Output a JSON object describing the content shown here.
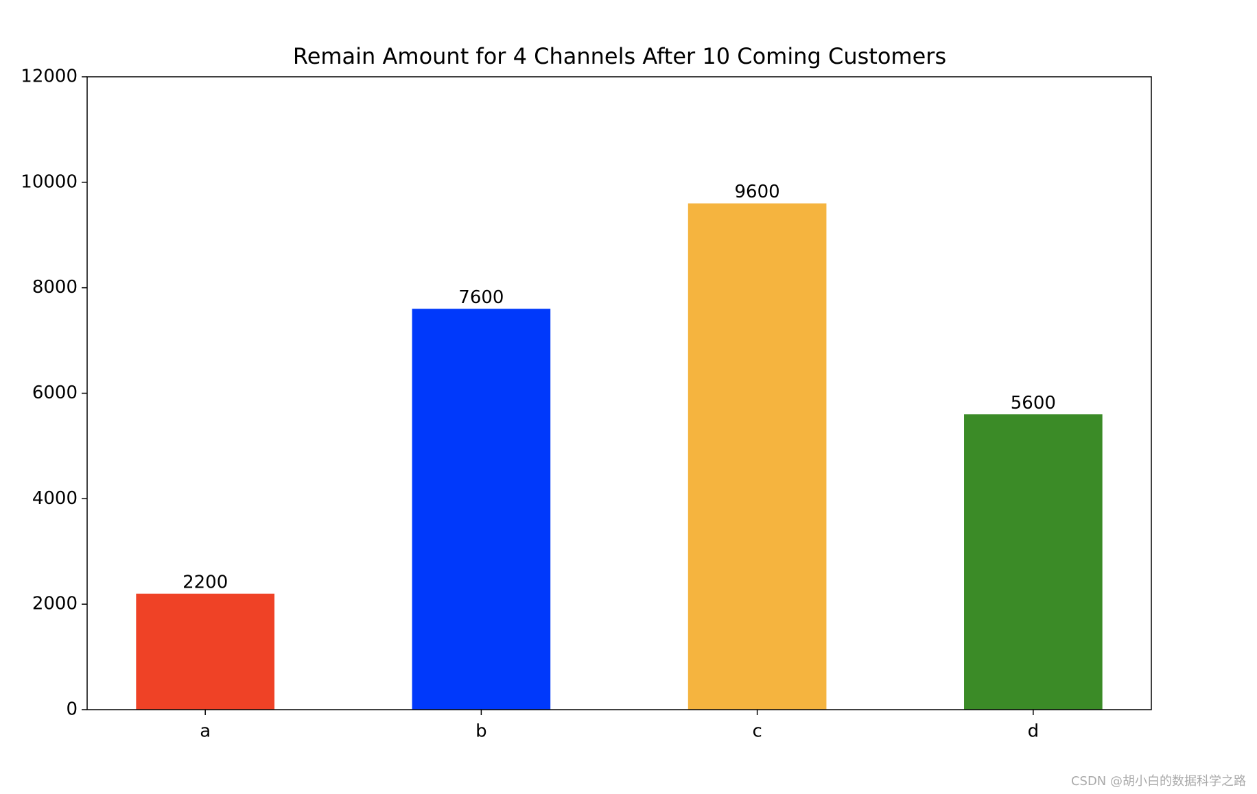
{
  "chart_data": {
    "type": "bar",
    "title": "Remain Amount for 4 Channels After 10 Coming Customers",
    "categories": [
      "a",
      "b",
      "c",
      "d"
    ],
    "values": [
      2200,
      7600,
      9600,
      5600
    ],
    "colors": [
      "#ef4226",
      "#0039fb",
      "#f5b43f",
      "#3b8b27"
    ],
    "ylim": [
      0,
      12000
    ],
    "yticks": [
      0,
      2000,
      4000,
      6000,
      8000,
      10000,
      12000
    ],
    "grid": false
  },
  "watermark": "CSDN @胡小白的数据科学之路"
}
